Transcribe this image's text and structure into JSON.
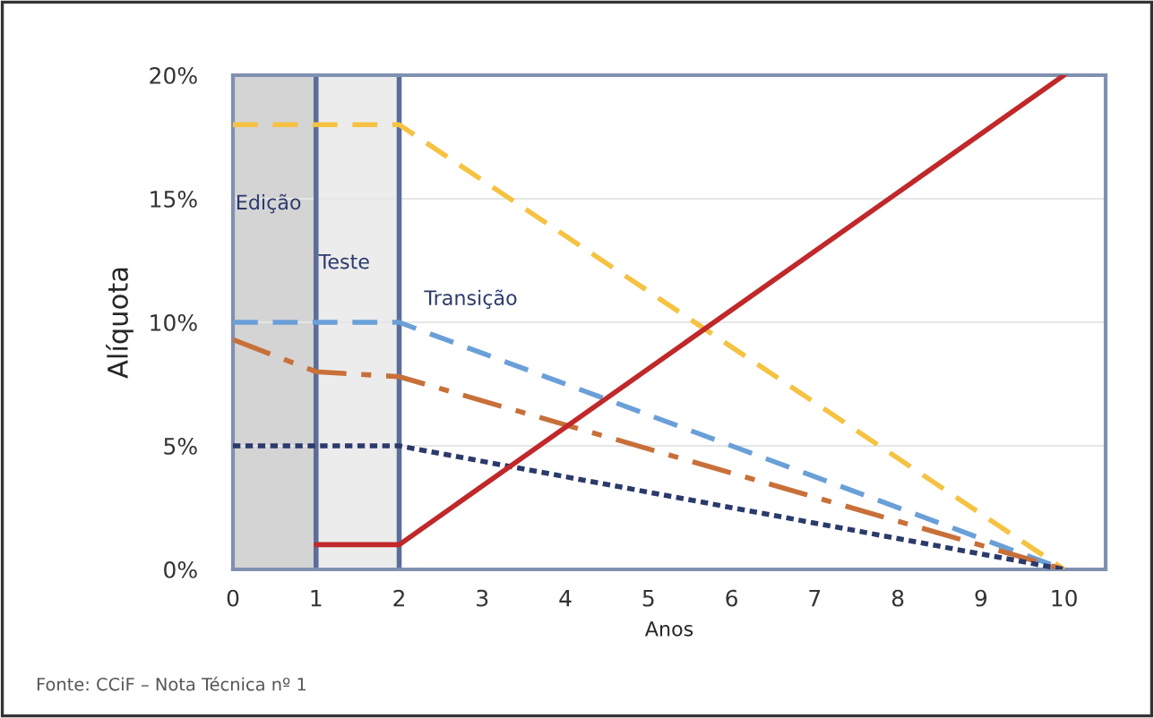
{
  "chart_data": {
    "type": "line",
    "ylabel": "Alíquota",
    "xlabel": "Anos",
    "xlim": [
      0,
      10.5
    ],
    "xticks": [
      0,
      1,
      2,
      3,
      4,
      5,
      6,
      7,
      8,
      9,
      10
    ],
    "ylim": [
      0,
      20
    ],
    "yticks": [
      {
        "value": 0,
        "label": "0%"
      },
      {
        "value": 5,
        "label": "5%"
      },
      {
        "value": 10,
        "label": "10%"
      },
      {
        "value": 15,
        "label": "15%"
      },
      {
        "value": 20,
        "label": "20%"
      }
    ],
    "grid": "y",
    "legend": false,
    "series": [
      {
        "color": "#f5c242",
        "line_style": "dashed",
        "x": [
          0,
          2,
          10
        ],
        "values": [
          18,
          18,
          0
        ]
      },
      {
        "color": "#6a9fd8",
        "line_style": "dashed",
        "x": [
          0,
          2,
          10
        ],
        "values": [
          10,
          10,
          0
        ]
      },
      {
        "color": "#c8703a",
        "line_style": "dashdot",
        "x": [
          0,
          1,
          2,
          10
        ],
        "values": [
          9.3,
          8,
          7.8,
          0
        ]
      },
      {
        "color": "#2b3a6b",
        "line_style": "dotted",
        "x": [
          0,
          2,
          10
        ],
        "values": [
          5,
          5,
          0
        ]
      },
      {
        "color": "#c0282a",
        "line_style": "solid",
        "x": [
          1,
          2,
          10
        ],
        "values": [
          1,
          1,
          20
        ]
      }
    ],
    "bands": [
      {
        "axis": "x",
        "from": 0,
        "to": 1,
        "label": "Edição",
        "color": "#d4d4d4"
      },
      {
        "axis": "x",
        "from": 1,
        "to": 2,
        "label": "Teste",
        "color": "#ececec"
      }
    ],
    "ref_lines": [
      {
        "axis": "x",
        "value": 1,
        "color": "#5a6e99"
      },
      {
        "axis": "x",
        "value": 2,
        "color": "#5a6e99"
      }
    ],
    "annotations": [
      "Transição",
      "Fonte: CCiF – Nota Técnica nº 1"
    ]
  }
}
